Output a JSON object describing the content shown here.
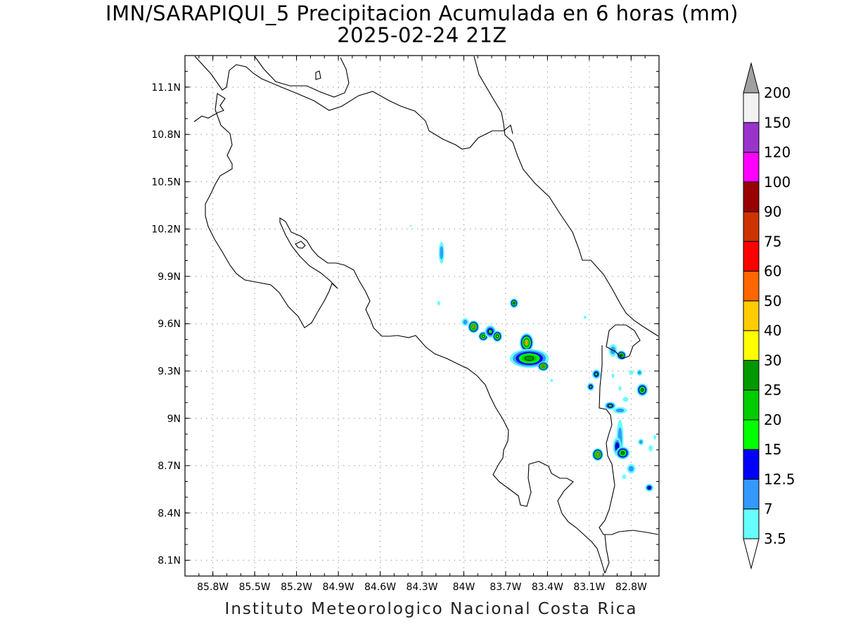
{
  "title": {
    "line1": "IMN/SARAPIQUI_5 Precipitacion Acumulada en 6 horas (mm)",
    "line2": "2025-02-24 21Z"
  },
  "footer": {
    "credit": "Instituto Meteorologico Nacional Costa Rica"
  },
  "map": {
    "lon_range": [
      -86.0,
      -82.6
    ],
    "lat_range": [
      8.0,
      11.3
    ],
    "x_ticks": [
      {
        "value": -85.8,
        "label": "85.8W"
      },
      {
        "value": -85.5,
        "label": "85.5W"
      },
      {
        "value": -85.2,
        "label": "85.2W"
      },
      {
        "value": -84.9,
        "label": "84.9W"
      },
      {
        "value": -84.6,
        "label": "84.6W"
      },
      {
        "value": -84.3,
        "label": "84.3W"
      },
      {
        "value": -84.0,
        "label": "84W"
      },
      {
        "value": -83.7,
        "label": "83.7W"
      },
      {
        "value": -83.4,
        "label": "83.4W"
      },
      {
        "value": -83.1,
        "label": "83.1W"
      },
      {
        "value": -82.8,
        "label": "82.8W"
      }
    ],
    "y_ticks": [
      {
        "value": 11.1,
        "label": "11.1N"
      },
      {
        "value": 10.8,
        "label": "10.8N"
      },
      {
        "value": 10.5,
        "label": "10.5N"
      },
      {
        "value": 10.2,
        "label": "10.2N"
      },
      {
        "value": 9.9,
        "label": "9.9N"
      },
      {
        "value": 9.6,
        "label": "9.6N"
      },
      {
        "value": 9.3,
        "label": "9.3N"
      },
      {
        "value": 9.0,
        "label": "9N"
      },
      {
        "value": 8.7,
        "label": "8.7N"
      },
      {
        "value": 8.4,
        "label": "8.4N"
      },
      {
        "value": 8.1,
        "label": "8.1N"
      }
    ],
    "grid": true,
    "grid_color": "#9a9a9a",
    "precip_cells": [
      {
        "lon": -84.16,
        "lat": 10.05,
        "mm": 7,
        "rx": 0.02,
        "ry": 0.07
      },
      {
        "lon": -84.18,
        "lat": 9.73,
        "mm": 3.5,
        "rx": 0.01,
        "ry": 0.015
      },
      {
        "lon": -83.99,
        "lat": 9.61,
        "mm": 7,
        "rx": 0.025,
        "ry": 0.025
      },
      {
        "lon": -83.93,
        "lat": 9.58,
        "mm": 40,
        "rx": 0.04,
        "ry": 0.04
      },
      {
        "lon": -83.86,
        "lat": 9.52,
        "mm": 30,
        "rx": 0.035,
        "ry": 0.03
      },
      {
        "lon": -83.81,
        "lat": 9.55,
        "mm": 15,
        "rx": 0.04,
        "ry": 0.04
      },
      {
        "lon": -83.76,
        "lat": 9.52,
        "mm": 30,
        "rx": 0.035,
        "ry": 0.035
      },
      {
        "lon": -83.64,
        "lat": 9.73,
        "mm": 25,
        "rx": 0.03,
        "ry": 0.03
      },
      {
        "lon": -83.55,
        "lat": 9.48,
        "mm": 40,
        "rx": 0.05,
        "ry": 0.06
      },
      {
        "lon": -83.53,
        "lat": 9.38,
        "mm": 25,
        "rx": 0.14,
        "ry": 0.06
      },
      {
        "lon": -83.43,
        "lat": 9.33,
        "mm": 40,
        "rx": 0.04,
        "ry": 0.03
      },
      {
        "lon": -83.37,
        "lat": 9.24,
        "mm": 3.5,
        "rx": 0.01,
        "ry": 0.01
      },
      {
        "lon": -83.13,
        "lat": 9.64,
        "mm": 3.5,
        "rx": 0.01,
        "ry": 0.01
      },
      {
        "lon": -83.05,
        "lat": 9.28,
        "mm": 15,
        "rx": 0.03,
        "ry": 0.03
      },
      {
        "lon": -83.09,
        "lat": 9.2,
        "mm": 15,
        "rx": 0.025,
        "ry": 0.025
      },
      {
        "lon": -82.93,
        "lat": 9.43,
        "mm": 7,
        "rx": 0.03,
        "ry": 0.04
      },
      {
        "lon": -82.87,
        "lat": 9.4,
        "mm": 25,
        "rx": 0.035,
        "ry": 0.03
      },
      {
        "lon": -82.95,
        "lat": 9.08,
        "mm": 15,
        "rx": 0.04,
        "ry": 0.025
      },
      {
        "lon": -82.88,
        "lat": 9.05,
        "mm": 7,
        "rx": 0.05,
        "ry": 0.02
      },
      {
        "lon": -82.88,
        "lat": 8.87,
        "mm": 7,
        "rx": 0.025,
        "ry": 0.12
      },
      {
        "lon": -82.9,
        "lat": 8.82,
        "mm": 12.5,
        "rx": 0.03,
        "ry": 0.06
      },
      {
        "lon": -82.86,
        "lat": 8.78,
        "mm": 25,
        "rx": 0.05,
        "ry": 0.04
      },
      {
        "lon": -83.04,
        "lat": 8.77,
        "mm": 40,
        "rx": 0.04,
        "ry": 0.04
      },
      {
        "lon": -82.72,
        "lat": 9.18,
        "mm": 25,
        "rx": 0.04,
        "ry": 0.04
      },
      {
        "lon": -82.74,
        "lat": 9.29,
        "mm": 7,
        "rx": 0.02,
        "ry": 0.02
      },
      {
        "lon": -82.8,
        "lat": 9.29,
        "mm": 3.5,
        "rx": 0.015,
        "ry": 0.015
      },
      {
        "lon": -82.84,
        "lat": 9.12,
        "mm": 3.5,
        "rx": 0.02,
        "ry": 0.015
      },
      {
        "lon": -82.8,
        "lat": 8.68,
        "mm": 7,
        "rx": 0.03,
        "ry": 0.03
      },
      {
        "lon": -82.73,
        "lat": 8.85,
        "mm": 7,
        "rx": 0.02,
        "ry": 0.02
      },
      {
        "lon": -82.66,
        "lat": 8.81,
        "mm": 3.5,
        "rx": 0.015,
        "ry": 0.02
      },
      {
        "lon": -82.67,
        "lat": 8.56,
        "mm": 12.5,
        "rx": 0.03,
        "ry": 0.025
      },
      {
        "lon": -82.63,
        "lat": 8.88,
        "mm": 3.5,
        "rx": 0.01,
        "ry": 0.015
      },
      {
        "lon": -82.85,
        "lat": 8.63,
        "mm": 3.5,
        "rx": 0.015,
        "ry": 0.015
      },
      {
        "lon": -82.93,
        "lat": 9.27,
        "mm": 3.5,
        "rx": 0.01,
        "ry": 0.015
      },
      {
        "lon": -82.88,
        "lat": 9.19,
        "mm": 3.5,
        "rx": 0.01,
        "ry": 0.015
      },
      {
        "lon": -84.38,
        "lat": 10.22,
        "mm": 3.5,
        "rx": 0.006,
        "ry": 0.006
      }
    ]
  },
  "legend": {
    "levels": [
      "200",
      "150",
      "120",
      "100",
      "90",
      "75",
      "60",
      "50",
      "40",
      "30",
      "25",
      "20",
      "15",
      "12.5",
      "7",
      "3.5"
    ],
    "colors": [
      "#f2f2f2",
      "#9933cc",
      "#ff00ff",
      "#990000",
      "#cc3300",
      "#ff0000",
      "#ff6600",
      "#ffcc00",
      "#ffff00",
      "#009900",
      "#00cc00",
      "#00ff00",
      "#0000ff",
      "#3399ff",
      "#66ffff"
    ],
    "over_color": "#a0a0a0",
    "under_color": "#ffffff"
  }
}
